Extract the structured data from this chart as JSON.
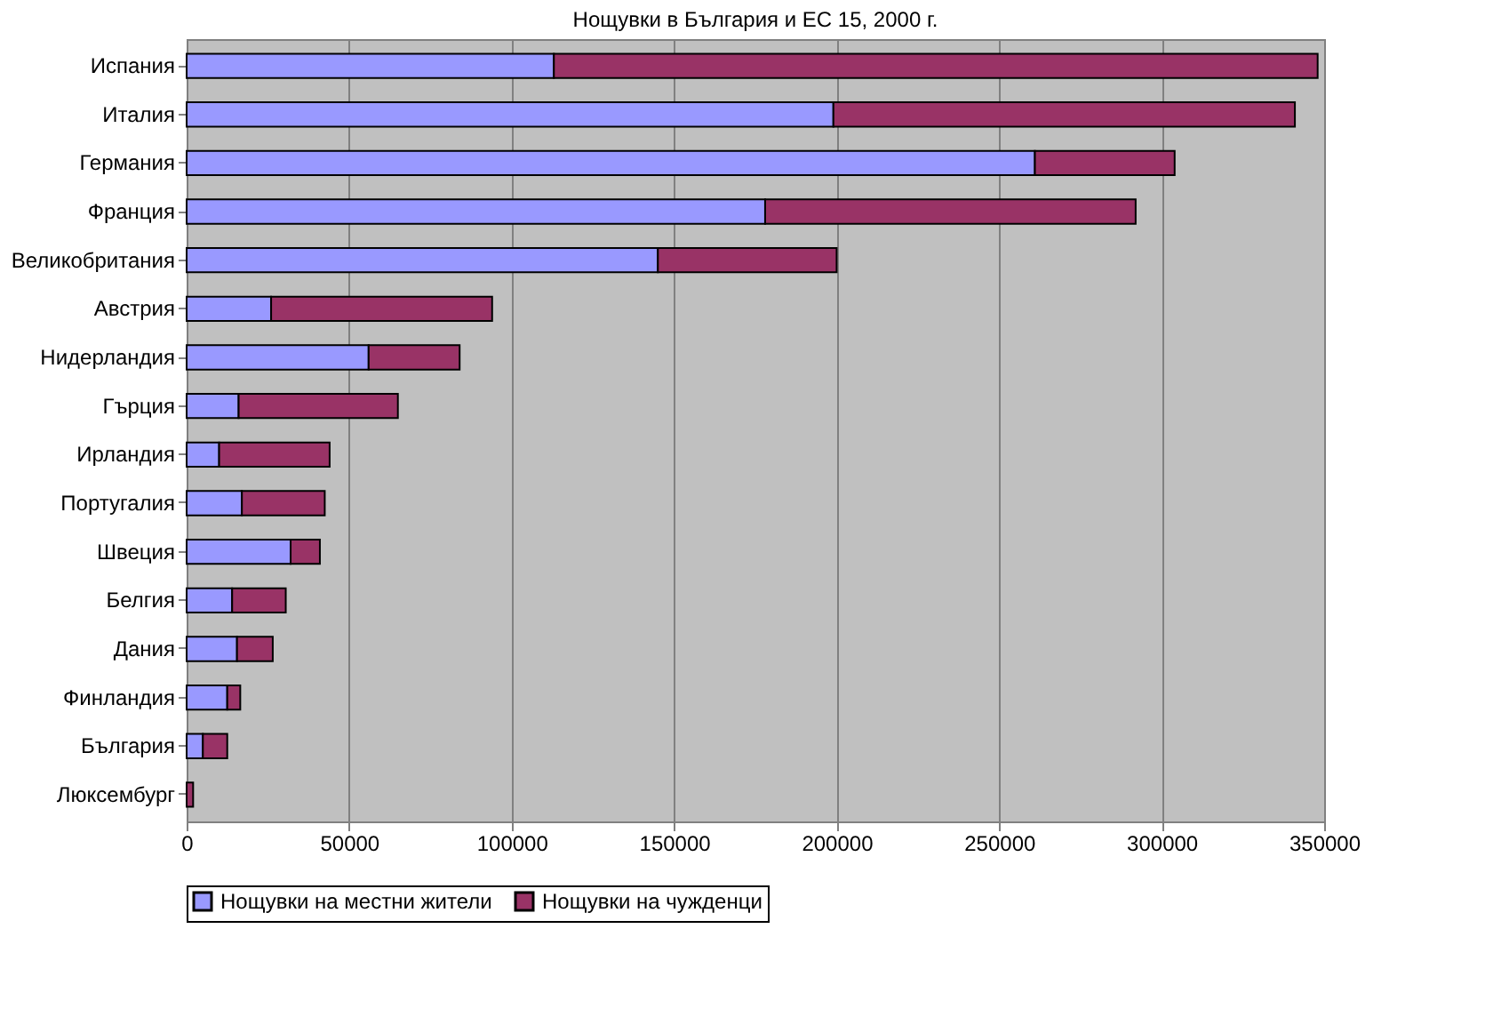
{
  "chart_data": {
    "type": "bar",
    "title": "Нощувки в България и ЕС 15, 2000 г.",
    "orientation": "horizontal",
    "stacked": true,
    "categories": [
      "Испания",
      "Италия",
      "Германия",
      "Франция",
      "Великобритания",
      "Австрия",
      "Нидерландия",
      "Гърция",
      "Ирландия",
      "Португалия",
      "Швеция",
      "Белгия",
      "Дания",
      "Финландия",
      "България",
      "Люксембург"
    ],
    "series": [
      {
        "name": "Нощувки на местни жители",
        "color": "#9999ff",
        "values": [
          113000,
          199000,
          261000,
          178000,
          145000,
          26000,
          56000,
          16000,
          10000,
          17000,
          32000,
          14000,
          15500,
          12500,
          5000,
          null
        ]
      },
      {
        "name": "Нощувки на чужденци",
        "color": "#993366",
        "values": [
          235000,
          142000,
          43000,
          114000,
          55000,
          68000,
          28000,
          49000,
          34000,
          25500,
          9000,
          16500,
          11000,
          4000,
          7500,
          2000
        ]
      }
    ],
    "xlim": [
      0,
      350000
    ],
    "xticks": [
      0,
      50000,
      100000,
      150000,
      200000,
      250000,
      300000,
      350000
    ],
    "grid": "x",
    "legend": "bottom"
  }
}
